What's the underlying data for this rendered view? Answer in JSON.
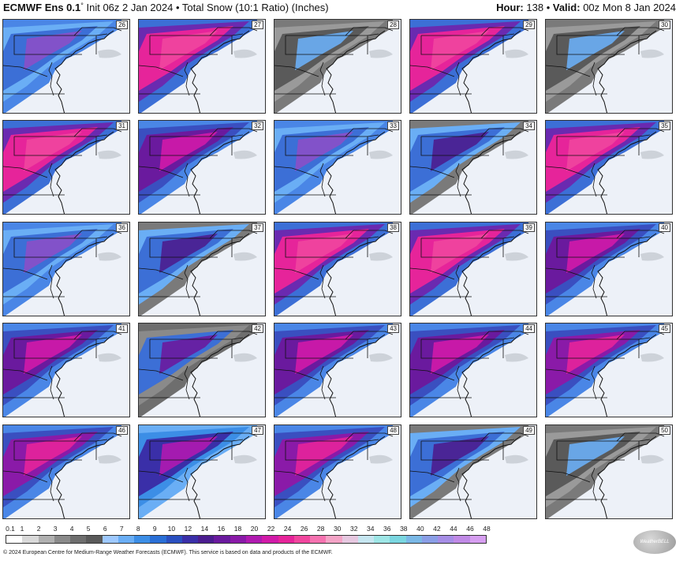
{
  "header": {
    "model": "ECMWF Ens 0.1",
    "degree": "°",
    "init": "Init 06z 2 Jan 2024",
    "bullet": "•",
    "product": "Total Snow (10:1 Ratio) (Inches)",
    "hour_label": "Hour:",
    "hour_value": "138",
    "valid_label": "Valid:",
    "valid_value": "00z Mon 8 Jan 2024"
  },
  "panels": [
    {
      "member": "26",
      "style": "blue"
    },
    {
      "member": "31",
      "style": "pinkheavy"
    },
    {
      "member": "36",
      "style": "blue"
    },
    {
      "member": "41",
      "style": "bluepurple"
    },
    {
      "member": "46",
      "style": "pinkband"
    },
    {
      "member": "27",
      "style": "pinkheavy"
    },
    {
      "member": "32",
      "style": "bluepurple"
    },
    {
      "member": "37",
      "style": "grayblue"
    },
    {
      "member": "42",
      "style": "grayband"
    },
    {
      "member": "47",
      "style": "blueband"
    },
    {
      "member": "28",
      "style": "gray"
    },
    {
      "member": "33",
      "style": "blue"
    },
    {
      "member": "38",
      "style": "pinkheavy"
    },
    {
      "member": "43",
      "style": "bluepurple"
    },
    {
      "member": "48",
      "style": "pinkband"
    },
    {
      "member": "29",
      "style": "pinkheavy"
    },
    {
      "member": "34",
      "style": "grayblue"
    },
    {
      "member": "39",
      "style": "pinkheavy"
    },
    {
      "member": "44",
      "style": "bluepurple"
    },
    {
      "member": "49",
      "style": "grayblue"
    },
    {
      "member": "30",
      "style": "gray"
    },
    {
      "member": "35",
      "style": "pinkheavy"
    },
    {
      "member": "40",
      "style": "bluepurple"
    },
    {
      "member": "45",
      "style": "pinkband"
    },
    {
      "member": "50",
      "style": "gray"
    }
  ],
  "legend": {
    "ticks": [
      "0.1",
      "1",
      "2",
      "3",
      "4",
      "5",
      "6",
      "7",
      "8",
      "9",
      "10",
      "12",
      "14",
      "16",
      "18",
      "20",
      "22",
      "24",
      "26",
      "28",
      "30",
      "32",
      "34",
      "36",
      "38",
      "40",
      "42",
      "44",
      "46",
      "48"
    ],
    "colors": [
      "#ffffff",
      "#d9d9d9",
      "#b0b0b0",
      "#8a8a8a",
      "#6e6e6e",
      "#5a5a5a",
      "#9ec9ff",
      "#6aaef5",
      "#3c8ee6",
      "#2a6fd6",
      "#2a4fc0",
      "#3a2fa8",
      "#4b1d8f",
      "#6a1a9e",
      "#8a1aa8",
      "#b01ab0",
      "#d11aa8",
      "#e6249a",
      "#f0469e",
      "#f572b0",
      "#f3a3c6",
      "#e6c8e0",
      "#c6e6f0",
      "#9ee6e6",
      "#7ad6e0",
      "#7ab8e6",
      "#8a9ee6",
      "#a68ee6",
      "#c08ae6",
      "#d69ef0"
    ]
  },
  "footer": {
    "copyright": "© 2024 European Centre for Medium-Range Weather Forecasts (ECMWF). This service is based on data and products of the ECMWF.",
    "logo": "WeatherBELL"
  }
}
